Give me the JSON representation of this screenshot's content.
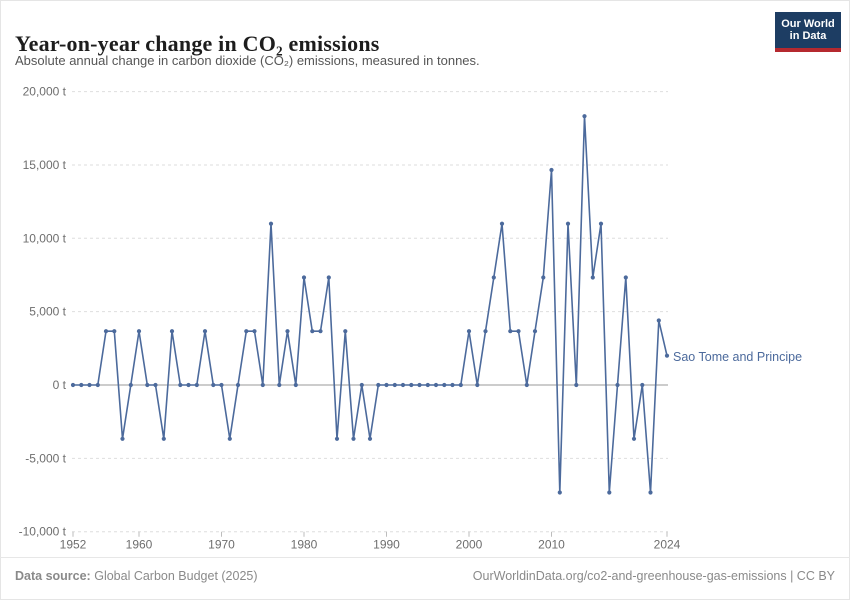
{
  "header": {
    "title": "Year-on-year change in CO₂ emissions",
    "subtitle": "Absolute annual change in carbon dioxide (CO₂) emissions, measured in tonnes.",
    "logo": {
      "line1": "Our World",
      "line2": "in Data"
    }
  },
  "chart_data": {
    "type": "line",
    "title": "Year-on-year change in CO₂ emissions",
    "series_label": "Sao Tome and Principe",
    "unit": "t",
    "x": [
      1952,
      1953,
      1954,
      1955,
      1956,
      1957,
      1958,
      1959,
      1960,
      1961,
      1962,
      1963,
      1964,
      1965,
      1966,
      1967,
      1968,
      1969,
      1970,
      1971,
      1972,
      1973,
      1974,
      1975,
      1976,
      1977,
      1978,
      1979,
      1980,
      1981,
      1982,
      1983,
      1984,
      1985,
      1986,
      1987,
      1988,
      1989,
      1990,
      1991,
      1992,
      1993,
      1994,
      1995,
      1996,
      1997,
      1998,
      1999,
      2000,
      2001,
      2002,
      2003,
      2004,
      2005,
      2006,
      2007,
      2008,
      2009,
      2010,
      2011,
      2012,
      2013,
      2014,
      2015,
      2016,
      2017,
      2018,
      2019,
      2020,
      2021,
      2022,
      2023,
      2024
    ],
    "values": [
      0,
      0,
      0,
      0,
      3664,
      3664,
      -3664,
      0,
      3664,
      0,
      0,
      -3664,
      3664,
      0,
      0,
      0,
      3664,
      0,
      0,
      -3664,
      0,
      3664,
      3664,
      0,
      10992,
      0,
      3664,
      0,
      7328,
      3664,
      3664,
      7328,
      -3664,
      3664,
      -3664,
      0,
      -3664,
      0,
      0,
      0,
      0,
      0,
      0,
      0,
      0,
      0,
      0,
      0,
      3664,
      0,
      3664,
      7328,
      10992,
      3664,
      3664,
      0,
      3664,
      7328,
      14656,
      -7328,
      10992,
      0,
      18320,
      7328,
      10992,
      -7328,
      0,
      7328,
      -3664,
      0,
      -7328,
      4400,
      2000
    ],
    "ylim": [
      -10000,
      20000
    ],
    "xlim": [
      1952,
      2024
    ],
    "yticks": [
      20000,
      15000,
      10000,
      5000,
      0,
      -5000,
      -10000
    ],
    "ytick_labels": [
      "20,000 t",
      "15,000 t",
      "10,000 t",
      "5,000 t",
      "0 t",
      "-5,000 t",
      "-10,000 t"
    ],
    "xticks": [
      1952,
      1960,
      1970,
      1980,
      1990,
      2000,
      2010,
      2024
    ],
    "grid": "horizontal dashed, solid zero line",
    "legend_position": "right of last point",
    "line_color": "#4c6a9c",
    "zero_line_color": "#9a9a9a",
    "grid_color": "#dedede",
    "tick_label_color": "#6e6e6e"
  },
  "footer": {
    "datasource_label": "Data source:",
    "datasource_value": "Global Carbon Budget (2025)",
    "link": "OurWorldinData.org/co2-and-greenhouse-gas-emissions | CC BY"
  },
  "colors": {
    "series_blue": "#4c6a9c",
    "logo_navy": "#1d3d63",
    "logo_red": "#b5292f"
  }
}
